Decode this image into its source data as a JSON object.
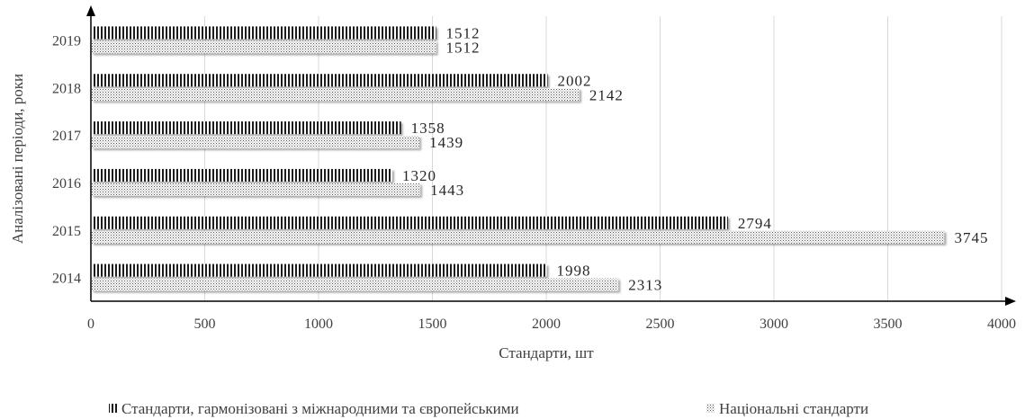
{
  "chart_data": {
    "type": "bar",
    "orientation": "horizontal",
    "categories": [
      "2014",
      "2015",
      "2016",
      "2017",
      "2018",
      "2019"
    ],
    "series": [
      {
        "name": "Стандарти, гармонізовані з міжнародними та європейськими",
        "values": [
          1998,
          2794,
          1320,
          1358,
          2002,
          1512
        ],
        "pattern": "vertical-stripes",
        "color": "#1a1a1a"
      },
      {
        "name": "Національні стандарти",
        "values": [
          2313,
          3745,
          1443,
          1439,
          2142,
          1512
        ],
        "pattern": "dots",
        "color": "#555555"
      }
    ],
    "xlabel": "Стандарти, шт",
    "ylabel": "Аналізовані періоди, роки",
    "xlim": [
      0,
      4000
    ],
    "xticks": [
      0,
      500,
      1000,
      1500,
      2000,
      2500,
      3000,
      3500,
      4000
    ],
    "grid": "vertical",
    "legend": "bottom",
    "data_labels": true
  }
}
